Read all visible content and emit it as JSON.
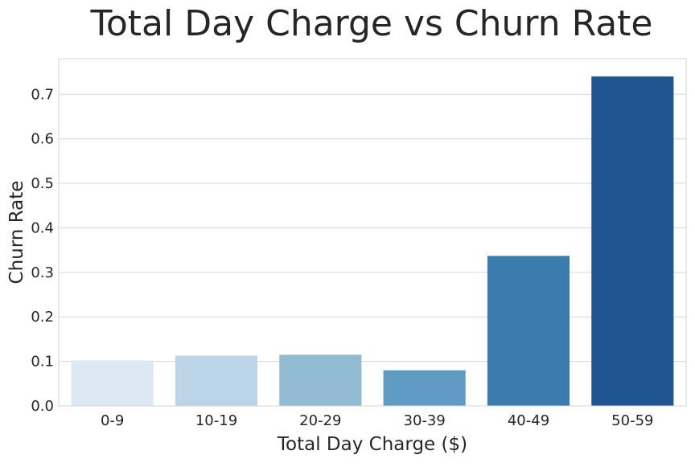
{
  "chart_data": {
    "type": "bar",
    "title": "Total Day Charge vs Churn Rate",
    "xlabel": "Total Day Charge ($)",
    "ylabel": "Churn Rate",
    "categories": [
      "0-9",
      "10-19",
      "20-29",
      "30-39",
      "40-49",
      "50-59"
    ],
    "values": [
      0.102,
      0.113,
      0.115,
      0.08,
      0.337,
      0.74
    ],
    "colors": [
      "#dde8f4",
      "#bcd4e7",
      "#92bad3",
      "#5f9bc2",
      "#3b7bad",
      "#1f5590"
    ],
    "ylim": [
      0,
      0.78
    ],
    "yticks": [
      "0.0",
      "0.1",
      "0.2",
      "0.3",
      "0.4",
      "0.5",
      "0.6",
      "0.7"
    ],
    "grid": true,
    "legend": "none"
  }
}
